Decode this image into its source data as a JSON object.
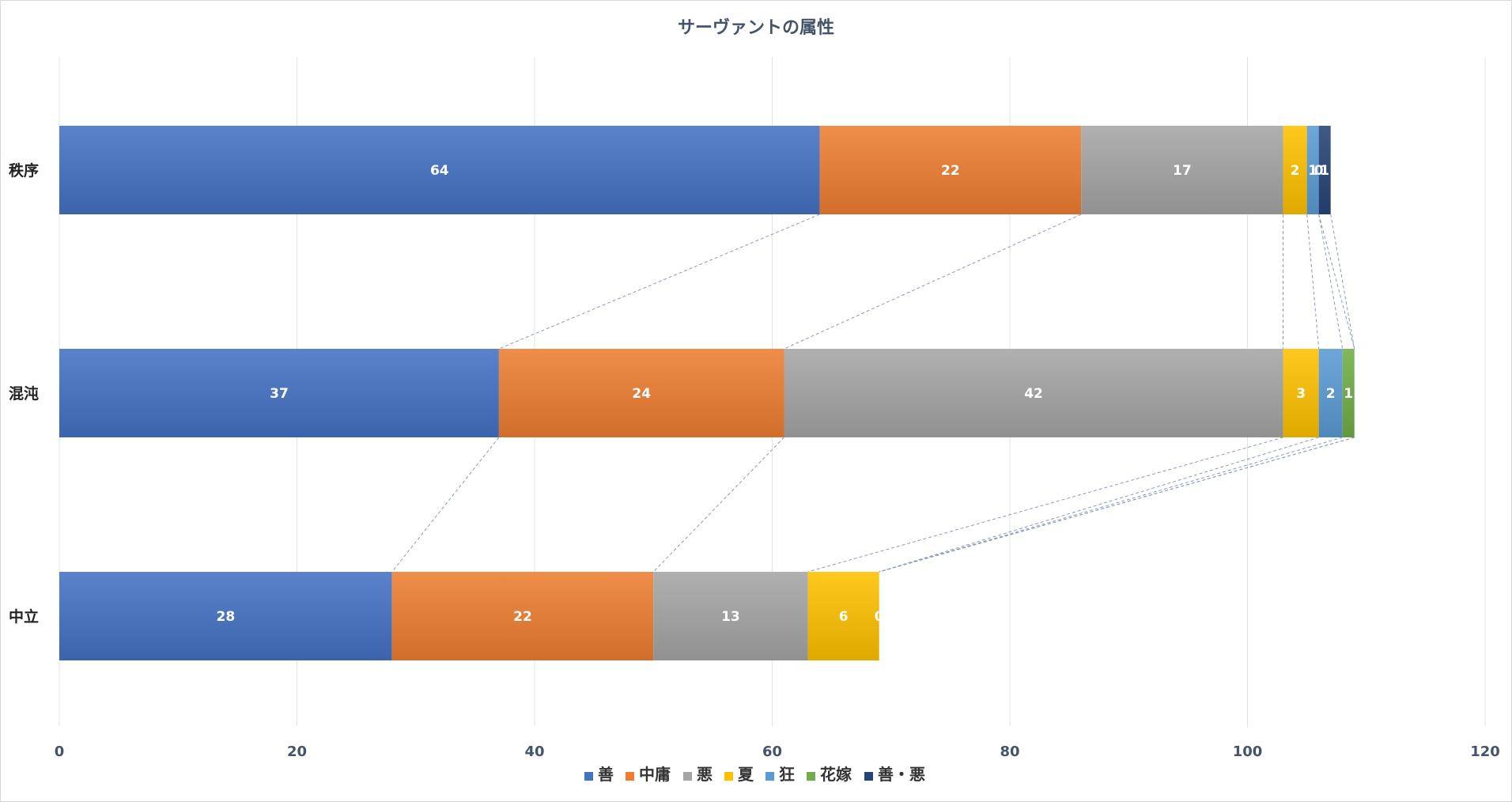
{
  "chart_data": {
    "type": "bar",
    "orientation": "horizontal",
    "stacked": true,
    "title": "サーヴァントの属性",
    "xlabel": "",
    "ylabel": "",
    "xlim": [
      0,
      120
    ],
    "x_ticks": [
      0,
      20,
      40,
      60,
      80,
      100,
      120
    ],
    "grid": true,
    "legend_position": "bottom",
    "series_lines": true,
    "categories": [
      "秩序",
      "混沌",
      "中立"
    ],
    "series": [
      {
        "name": "善",
        "color": "#4472c4",
        "values": [
          64,
          37,
          28
        ],
        "labels": [
          "64",
          "37",
          "28"
        ]
      },
      {
        "name": "中庸",
        "color": "#ed7d31",
        "values": [
          22,
          24,
          22
        ],
        "labels": [
          "22",
          "24",
          "22"
        ]
      },
      {
        "name": "悪",
        "color": "#a5a5a5",
        "values": [
          17,
          42,
          13
        ],
        "labels": [
          "17",
          "42",
          "13"
        ]
      },
      {
        "name": "夏",
        "color": "#ffc000",
        "values": [
          2,
          3,
          6
        ],
        "labels": [
          "2",
          "3",
          "6"
        ]
      },
      {
        "name": "狂",
        "color": "#5b9bd5",
        "values": [
          1,
          2,
          0
        ],
        "labels": [
          "1",
          "2",
          "0"
        ]
      },
      {
        "name": "花嫁",
        "color": "#70ad47",
        "values": [
          0,
          1,
          0
        ],
        "labels": [
          "0",
          "1",
          ""
        ]
      },
      {
        "name": "善・悪",
        "color": "#264478",
        "values": [
          1,
          0,
          0
        ],
        "labels": [
          "1",
          "",
          ""
        ]
      }
    ]
  }
}
